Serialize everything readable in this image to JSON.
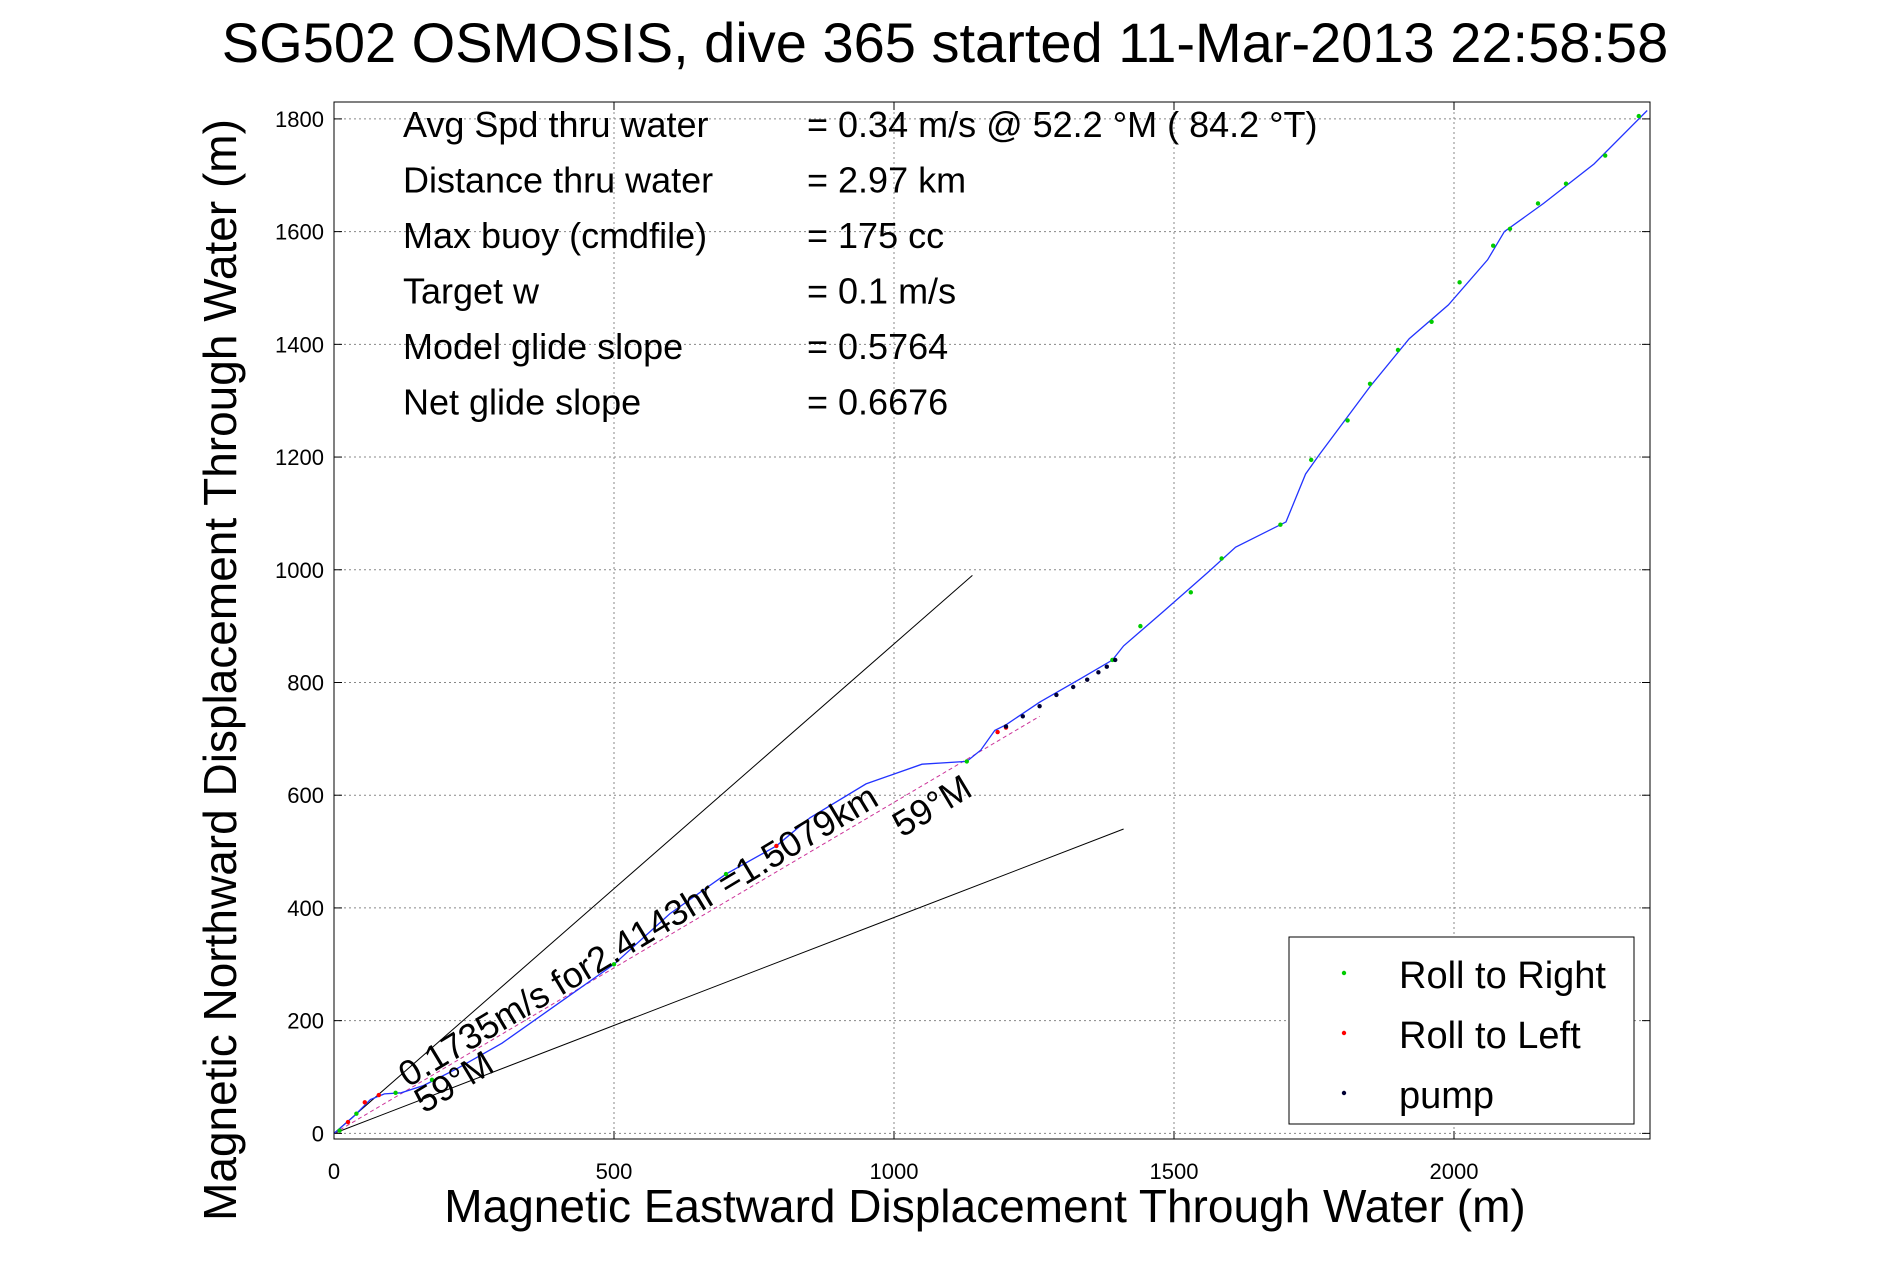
{
  "chart_data": {
    "type": "line",
    "title": "SG502 OSMOSIS, dive 365 started 11-Mar-2013 22:58:58",
    "xlabel": "Magnetic Eastward Displacement Through Water (m)",
    "ylabel": "Magnetic Northward Displacement Through Water (m)",
    "xlim": [
      0,
      2350
    ],
    "ylim": [
      -10,
      1830
    ],
    "xticks": [
      0,
      500,
      1000,
      1500,
      2000
    ],
    "yticks": [
      0,
      200,
      400,
      600,
      800,
      1000,
      1200,
      1400,
      1600,
      1800
    ],
    "grid": true,
    "legend_position": "bottom-right",
    "stats": [
      {
        "label": "Avg Spd thru water",
        "value": "=  0.34 m/s @  52.2 °M ( 84.2 °T)"
      },
      {
        "label": "Distance thru water",
        "value": "=  2.97 km"
      },
      {
        "label": "Max buoy (cmdfile)",
        "value": "= 175 cc"
      },
      {
        "label": "Target w",
        "value": "= 0.1 m/s"
      },
      {
        "label": "Model glide slope",
        "value": "= 0.5764"
      },
      {
        "label": "Net glide slope",
        "value": "= 0.6676"
      }
    ],
    "annotations": {
      "course_label": "0.1735m/s for2.4143hr =1.5079km",
      "heading_start": "59°M",
      "heading_end": "59°M"
    },
    "reference_lines": [
      {
        "x": [
          0,
          1140
        ],
        "y": [
          0,
          990
        ]
      },
      {
        "x": [
          0,
          1410
        ],
        "y": [
          0,
          540
        ]
      },
      {
        "x": [
          0,
          1260
        ],
        "y": [
          0,
          740
        ]
      }
    ],
    "track": {
      "x": [
        0,
        35,
        65,
        90,
        120,
        160,
        220,
        300,
        400,
        500,
        600,
        700,
        790,
        850,
        950,
        1050,
        1130,
        1155,
        1180,
        1200,
        1260,
        1330,
        1390,
        1410,
        1480,
        1560,
        1610,
        1700,
        1735,
        1760,
        1850,
        1920,
        1990,
        2060,
        2090,
        2160,
        2250,
        2345
      ],
      "y": [
        0,
        30,
        60,
        70,
        72,
        85,
        115,
        160,
        230,
        300,
        390,
        460,
        510,
        560,
        620,
        655,
        660,
        680,
        715,
        725,
        765,
        805,
        840,
        865,
        925,
        995,
        1040,
        1085,
        1170,
        1205,
        1325,
        1410,
        1470,
        1550,
        1600,
        1650,
        1720,
        1815
      ]
    },
    "series": [
      {
        "name": "Roll to Right",
        "color": "#00cc00",
        "x": [
          10,
          40,
          110,
          175,
          500,
          700,
          1130,
          1390,
          1440,
          1530,
          1585,
          1690,
          1745,
          1810,
          1850,
          1900,
          1960,
          2010,
          2070,
          2100,
          2150,
          2200,
          2270,
          2330
        ],
        "y": [
          5,
          35,
          72,
          95,
          300,
          460,
          660,
          840,
          900,
          960,
          1020,
          1080,
          1195,
          1265,
          1330,
          1390,
          1440,
          1510,
          1575,
          1605,
          1650,
          1685,
          1735,
          1805
        ]
      },
      {
        "name": "Roll to Left",
        "color": "#ff0000",
        "x": [
          25,
          55,
          80,
          790,
          1185,
          1200
        ],
        "y": [
          20,
          55,
          68,
          510,
          712,
          720
        ]
      },
      {
        "name": "pump",
        "color": "#000033",
        "x": [
          1200,
          1230,
          1260,
          1290,
          1320,
          1345,
          1365,
          1380,
          1395
        ],
        "y": [
          722,
          740,
          758,
          778,
          792,
          805,
          818,
          828,
          840
        ]
      }
    ]
  }
}
